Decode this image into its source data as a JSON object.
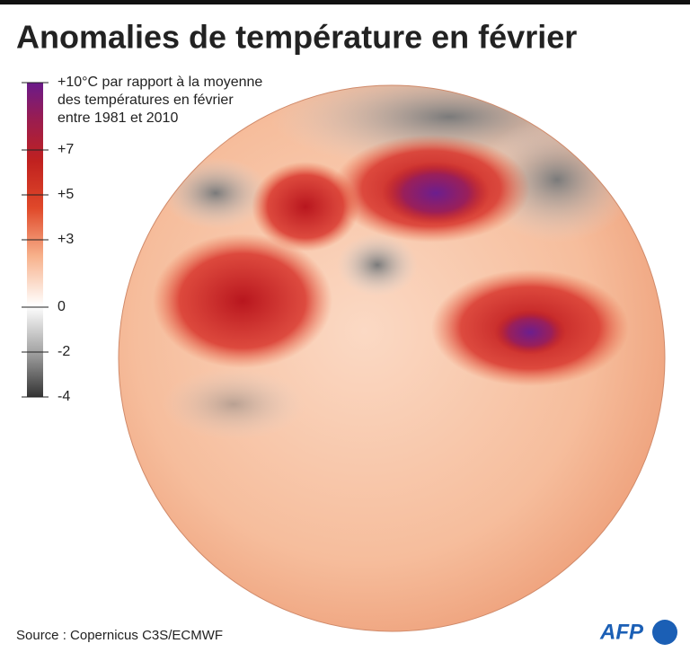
{
  "header": {
    "title": "Anomalies de température en février"
  },
  "legend": {
    "range": [
      -4,
      10
    ],
    "ticks": [
      {
        "value": 10,
        "label": "+10°C par rapport à la moyenne"
      },
      {
        "value": 7,
        "label": "+7"
      },
      {
        "value": 5,
        "label": "+5"
      },
      {
        "value": 3,
        "label": "+3"
      },
      0,
      {
        "value": -2,
        "label": "-2"
      },
      {
        "value": -4,
        "label": "-4"
      }
    ],
    "caption_lines": [
      "des températures en février",
      "entre 1981 et 2010"
    ]
  },
  "footer": {
    "source": "Source : Copernicus C3S/ECMWF",
    "logo": "AFP"
  }
}
